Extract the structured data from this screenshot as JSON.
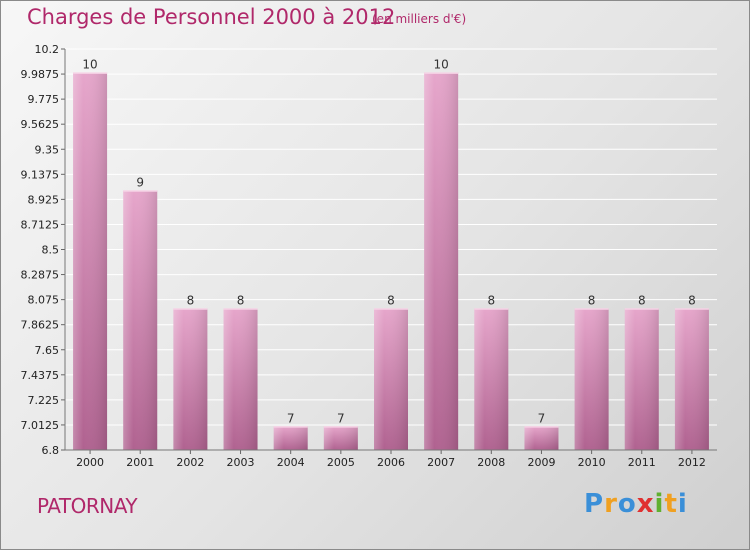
{
  "header": {
    "title": "Charges de Personnel 2000 à 2012",
    "subtitle": "(en milliers d'€)"
  },
  "footer": {
    "location": "PATORNAY",
    "logo_letters": [
      {
        "ch": "P",
        "color": "#3a8fd8"
      },
      {
        "ch": "r",
        "color": "#f0a020"
      },
      {
        "ch": "o",
        "color": "#3a8fd8"
      },
      {
        "ch": "x",
        "color": "#e03030"
      },
      {
        "ch": "i",
        "color": "#60b030"
      },
      {
        "ch": "t",
        "color": "#f0a020"
      },
      {
        "ch": "i",
        "color": "#3a8fd8"
      }
    ]
  },
  "chart_data": {
    "type": "bar",
    "categories": [
      "2000",
      "2001",
      "2002",
      "2003",
      "2004",
      "2005",
      "2006",
      "2007",
      "2008",
      "2009",
      "2010",
      "2011",
      "2012"
    ],
    "values": [
      10,
      9,
      8,
      8,
      7,
      7,
      8,
      10,
      8,
      7,
      8,
      8,
      8
    ],
    "data_labels": [
      "10",
      "9",
      "8",
      "8",
      "7",
      "7",
      "8",
      "10",
      "8",
      "7",
      "8",
      "8",
      "8"
    ],
    "ylim": [
      6.8,
      10.2
    ],
    "y_ticks": [
      "10.2",
      "9.9875",
      "9.775",
      "9.5625",
      "9.35",
      "9.1375",
      "8.925",
      "8.7125",
      "8.5",
      "8.2875",
      "8.075",
      "7.8625",
      "7.65",
      "7.4375",
      "7.225",
      "7.0125",
      "6.8"
    ],
    "y_tick_values": [
      10.2,
      9.9875,
      9.775,
      9.5625,
      9.35,
      9.1375,
      8.925,
      8.7125,
      8.5,
      8.2875,
      8.075,
      7.8625,
      7.65,
      7.4375,
      7.225,
      7.0125,
      6.8
    ],
    "grid": true,
    "bar_color": "#d77fb0",
    "colors": {
      "text_accent": "#b0286a"
    }
  }
}
